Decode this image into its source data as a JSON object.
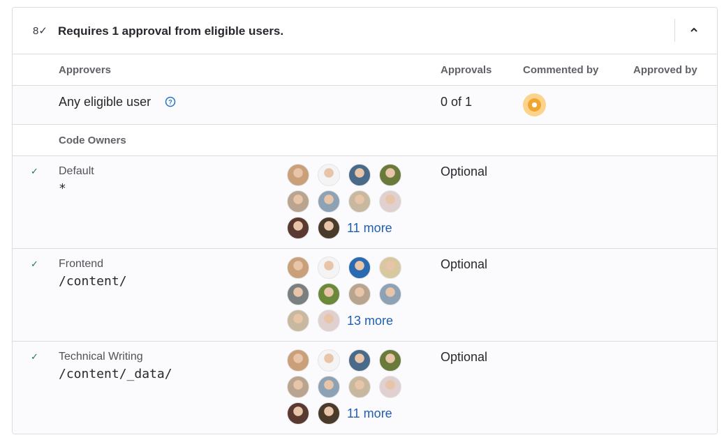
{
  "header": {
    "icon": "approval-user-check-icon",
    "title": "Requires 1 approval from eligible users.",
    "toggle_icon": "chevron-up-icon"
  },
  "columns": {
    "approvers": "Approvers",
    "approvals": "Approvals",
    "commented_by": "Commented by",
    "approved_by": "Approved by"
  },
  "any_eligible": {
    "label": "Any eligible user",
    "help_icon": "question-circle-icon",
    "approvals": "0 of 1",
    "commenter_avatar_color": "#f0a630"
  },
  "section": "Code Owners",
  "rules": [
    {
      "name": "Default",
      "pattern": "*",
      "status": "Optional",
      "more": "11 more",
      "avatars": [
        "#c9a07a",
        "#f4f4f4",
        "#4a6a8a",
        "#6a7a3a",
        "#b9a48f",
        "#8ea2b5",
        "#c8b8a0",
        "#e0d0d0",
        "#5a3a30",
        "#4a3a2a"
      ]
    },
    {
      "name": "Frontend",
      "pattern": "/content/",
      "status": "Optional",
      "more": "13 more",
      "avatars": [
        "#c9a07a",
        "#f4f4f4",
        "#2a6ab0",
        "#d8c8a0",
        "#7a8080",
        "#6a8a3a",
        "#b9a48f",
        "#8ea2b5",
        "#c8b8a0",
        "#e0d0d0"
      ]
    },
    {
      "name": "Technical Writing",
      "pattern": "/content/_data/",
      "status": "Optional",
      "more": "11 more",
      "avatars": [
        "#c9a07a",
        "#f4f4f4",
        "#4a6a8a",
        "#6a7a3a",
        "#b9a48f",
        "#8ea2b5",
        "#c8b8a0",
        "#e0d0d0",
        "#5a3a30",
        "#4a3a2a"
      ]
    }
  ]
}
